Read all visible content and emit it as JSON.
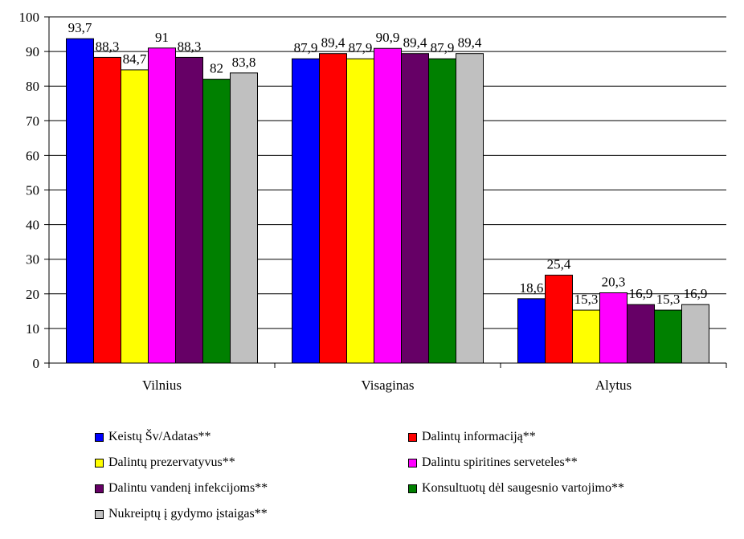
{
  "chart_data": {
    "type": "bar",
    "categories": [
      "Vilnius",
      "Visaginas",
      "Alytus"
    ],
    "ylim": [
      0,
      100
    ],
    "yticks": [
      0,
      10,
      20,
      30,
      40,
      50,
      60,
      70,
      80,
      90,
      100
    ],
    "grid": true,
    "legend_position": "bottom",
    "series": [
      {
        "name": "Keistų Šv/Adatas**",
        "color": "#0000FF",
        "values": [
          93.7,
          87.9,
          18.6
        ],
        "labels": [
          "93,7",
          "87,9",
          "18,6"
        ]
      },
      {
        "name": "Dalintų informaciją**",
        "color": "#FF0000",
        "values": [
          88.3,
          89.4,
          25.4
        ],
        "labels": [
          "88,3",
          "89,4",
          "25,4"
        ]
      },
      {
        "name": "Dalintų prezervatyvus**",
        "color": "#FFFF00",
        "values": [
          84.7,
          87.9,
          15.3
        ],
        "labels": [
          "84,7",
          "87,9",
          "15,3"
        ]
      },
      {
        "name": "Dalintu spiritines serveteles**",
        "color": "#FF00FF",
        "values": [
          91,
          90.9,
          20.3
        ],
        "labels": [
          "91",
          "90,9",
          "20,3"
        ]
      },
      {
        "name": "Dalintu vandenį infekcijoms**",
        "color": "#660066",
        "values": [
          88.3,
          89.4,
          16.9
        ],
        "labels": [
          "88,3",
          "89,4",
          "16,9"
        ]
      },
      {
        "name": "Konsultuotų dėl saugesnio vartojimo**",
        "color": "#008000",
        "values": [
          82,
          87.9,
          15.3
        ],
        "labels": [
          "82",
          "87,9",
          "15,3"
        ]
      },
      {
        "name": "Nukreiptų į gydymo įstaigas**",
        "color": "#C0C0C0",
        "values": [
          83.8,
          89.4,
          16.9
        ],
        "labels": [
          "83,8",
          "89,4",
          "16,9"
        ]
      }
    ]
  }
}
